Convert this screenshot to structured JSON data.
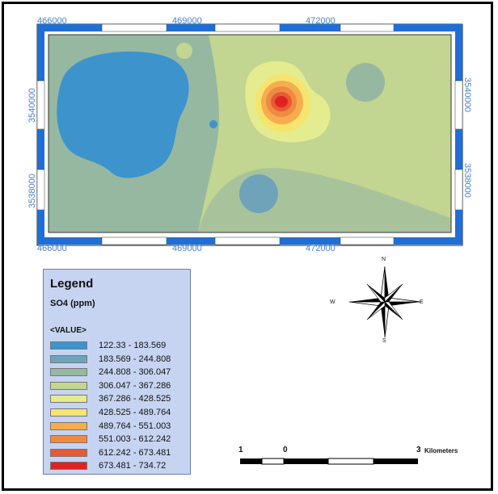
{
  "map": {
    "x_ticks": [
      "466000",
      "469000",
      "472000"
    ],
    "y_ticks": [
      "3540000",
      "3538000"
    ]
  },
  "legend": {
    "title": "Legend",
    "parameter": "SO4 (ppm)",
    "value_header": "<VALUE>",
    "classes": [
      {
        "label": "122.33 - 183.569",
        "color": "#3d93cc"
      },
      {
        "label": "183.569 - 244.808",
        "color": "#6ea3b9"
      },
      {
        "label": "244.808 - 306.047",
        "color": "#96b8a1"
      },
      {
        "label": "306.047 - 367.286",
        "color": "#c2d591"
      },
      {
        "label": "367.286 - 428.525",
        "color": "#e4ec8f"
      },
      {
        "label": "428.525 - 489.764",
        "color": "#f6e46e"
      },
      {
        "label": "489.764 - 551.003",
        "color": "#f5ad4e"
      },
      {
        "label": "551.003 - 612.242",
        "color": "#ef8a42"
      },
      {
        "label": "612.242 - 673.481",
        "color": "#e65a34"
      },
      {
        "label": "673.481 - 734.72",
        "color": "#df2323"
      }
    ]
  },
  "north_arrow": {
    "n": "N",
    "s": "S",
    "e": "E",
    "w": "W"
  },
  "scale_bar": {
    "left": "1",
    "zero": "0",
    "right": "3",
    "units": "Kilometers"
  }
}
